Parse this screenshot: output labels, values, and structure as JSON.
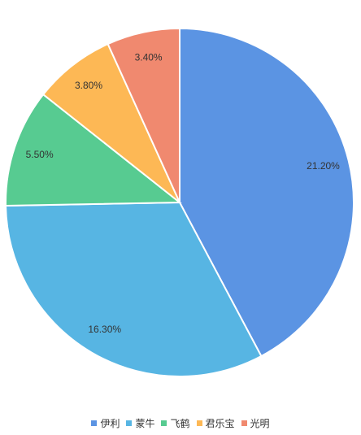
{
  "chart_data": {
    "type": "pie",
    "categories": [
      "伊利",
      "蒙牛",
      "飞鹤",
      "君乐宝",
      "光明"
    ],
    "values": [
      21.2,
      16.3,
      5.5,
      3.8,
      3.4
    ],
    "value_labels": [
      "21.20%",
      "16.30%",
      "5.50%",
      "3.80%",
      "3.40%"
    ],
    "colors": [
      "#5b94e3",
      "#57b5e3",
      "#57cb91",
      "#fdb855",
      "#f0896f"
    ],
    "legend": "bottom"
  }
}
